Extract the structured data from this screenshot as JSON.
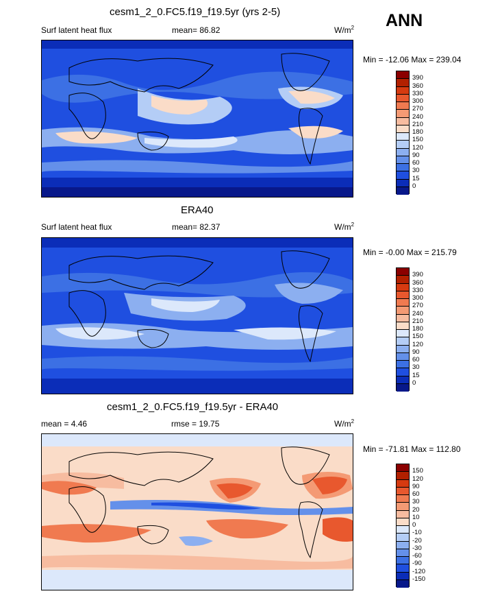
{
  "season": "ANN",
  "panels": [
    {
      "title": "cesm1_2_0.FC5.f19_f19.5yr (yrs 2-5)",
      "left_label": "Surf latent heat flux",
      "center_label": "mean=  86.82",
      "units": "W/m",
      "units_sup": "2",
      "minmax": "Min = -12.06 Max = 239.04",
      "palette": "absolute"
    },
    {
      "title": "ERA40",
      "left_label": "Surf latent heat flux",
      "center_label": "mean=  82.37",
      "units": "W/m",
      "units_sup": "2",
      "minmax": "Min =  -0.00 Max = 215.79",
      "palette": "absolute"
    },
    {
      "title": "cesm1_2_0.FC5.f19_f19.5yr - ERA40",
      "left_label": "mean =   4.46",
      "center_label": "rmse =  19.75",
      "units": "W/m",
      "units_sup": "2",
      "minmax": "Min = -71.81 Max = 112.80",
      "palette": "difference"
    }
  ],
  "chart_data": [
    {
      "type": "heatmap",
      "title": "cesm1_2_0.FC5.f19_f19.5yr (yrs 2-5)",
      "variable": "Surf latent heat flux",
      "units": "W/m2",
      "mean": 86.82,
      "min": -12.06,
      "max": 239.04,
      "colorbar_levels": [
        "390",
        "360",
        "330",
        "300",
        "270",
        "240",
        "210",
        "180",
        "150",
        "120",
        "90",
        "60",
        "30",
        "15",
        "0"
      ],
      "colorbar_colors": [
        "#8b0000",
        "#b22000",
        "#d63a10",
        "#e8582e",
        "#f07a50",
        "#f49a74",
        "#f7bca0",
        "#fadcc8",
        "#dce8fb",
        "#b4cdf6",
        "#8caff0",
        "#6490ea",
        "#3c70e4",
        "#1f4fe0",
        "#0b2db8",
        "#08188a"
      ]
    },
    {
      "type": "heatmap",
      "title": "ERA40",
      "variable": "Surf latent heat flux",
      "units": "W/m2",
      "mean": 82.37,
      "min": -0.0,
      "max": 215.79,
      "colorbar_levels": [
        "390",
        "360",
        "330",
        "300",
        "270",
        "240",
        "210",
        "180",
        "150",
        "120",
        "90",
        "60",
        "30",
        "15",
        "0"
      ],
      "colorbar_colors": [
        "#8b0000",
        "#b22000",
        "#d63a10",
        "#e8582e",
        "#f07a50",
        "#f49a74",
        "#f7bca0",
        "#fadcc8",
        "#dce8fb",
        "#b4cdf6",
        "#8caff0",
        "#6490ea",
        "#3c70e4",
        "#1f4fe0",
        "#0b2db8",
        "#08188a"
      ]
    },
    {
      "type": "heatmap",
      "title": "cesm1_2_0.FC5.f19_f19.5yr - ERA40",
      "units": "W/m2",
      "mean": 4.46,
      "rmse": 19.75,
      "min": -71.81,
      "max": 112.8,
      "colorbar_levels": [
        "150",
        "120",
        "90",
        "60",
        "30",
        "20",
        "10",
        "0",
        "-10",
        "-20",
        "-30",
        "-60",
        "-90",
        "-120",
        "-150"
      ],
      "colorbar_colors": [
        "#8b0000",
        "#b22000",
        "#d63a10",
        "#e8582e",
        "#f07a50",
        "#f49a74",
        "#f7bca0",
        "#fadcc8",
        "#dce8fb",
        "#b4cdf6",
        "#8caff0",
        "#6490ea",
        "#3c70e4",
        "#1f4fe0",
        "#0b2db8",
        "#08188a"
      ]
    }
  ]
}
